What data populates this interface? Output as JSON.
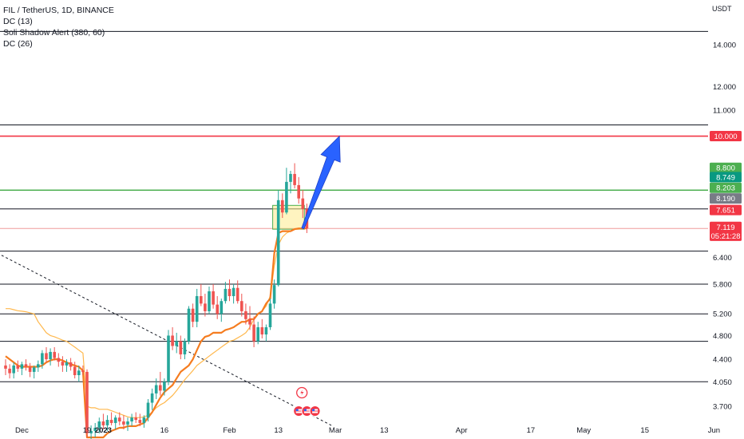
{
  "legend": {
    "symbol": "FIL / TetherUS, 1D, BINANCE",
    "ind1": "DC (13)",
    "ind2": "Soli Shadow Alert (380, 60)",
    "ind3": "DC (26)"
  },
  "currency": "USDT",
  "colors": {
    "up": "#26a69a",
    "down": "#ef5350",
    "dc13": "#f57c1f",
    "dc26": "#ffb84d",
    "red_level": "#f23645",
    "green_level": "#4caf50",
    "arrow": "#2962ff",
    "grid": "#131722"
  },
  "chart_data": {
    "type": "candlestick",
    "y_scale": "log",
    "ylim": [
      3.5,
      16.5
    ],
    "y_ticks": [
      "14.000",
      "12.000",
      "11.000",
      "6.400",
      "5.800",
      "5.200",
      "4.800",
      "4.400",
      "4.050",
      "3.700"
    ],
    "x_ticks": [
      {
        "label": "Dec",
        "index": 4,
        "bold": false
      },
      {
        "label": "19",
        "index": 20,
        "bold": false
      },
      {
        "label": "2023",
        "index": 24,
        "bold": true
      },
      {
        "label": "16",
        "index": 39,
        "bold": false
      },
      {
        "label": "Feb",
        "index": 55,
        "bold": false
      },
      {
        "label": "13",
        "index": 67,
        "bold": false
      },
      {
        "label": "Mar",
        "index": 81,
        "bold": false
      },
      {
        "label": "13",
        "index": 93,
        "bold": false
      },
      {
        "label": "Apr",
        "index": 112,
        "bold": false
      },
      {
        "label": "17",
        "index": 129,
        "bold": false
      },
      {
        "label": "May",
        "index": 142,
        "bold": false
      },
      {
        "label": "15",
        "index": 157,
        "bold": false
      },
      {
        "label": "Jun",
        "index": 174,
        "bold": false
      }
    ],
    "candles": [
      [
        4.3,
        4.4,
        4.15,
        4.25
      ],
      [
        4.25,
        4.32,
        4.1,
        4.18
      ],
      [
        4.18,
        4.35,
        4.1,
        4.3
      ],
      [
        4.3,
        4.38,
        4.2,
        4.25
      ],
      [
        4.25,
        4.36,
        4.15,
        4.32
      ],
      [
        4.32,
        4.4,
        4.22,
        4.28
      ],
      [
        4.28,
        4.34,
        4.12,
        4.2
      ],
      [
        4.2,
        4.3,
        4.1,
        4.27
      ],
      [
        4.27,
        4.38,
        4.2,
        4.32
      ],
      [
        4.32,
        4.55,
        4.25,
        4.5
      ],
      [
        4.5,
        4.6,
        4.35,
        4.4
      ],
      [
        4.4,
        4.58,
        4.3,
        4.52
      ],
      [
        4.52,
        4.6,
        4.38,
        4.42
      ],
      [
        4.42,
        4.5,
        4.28,
        4.36
      ],
      [
        4.36,
        4.45,
        4.2,
        4.3
      ],
      [
        4.3,
        4.4,
        4.2,
        4.35
      ],
      [
        4.35,
        4.42,
        4.22,
        4.28
      ],
      [
        4.28,
        4.36,
        4.1,
        4.15
      ],
      [
        4.15,
        4.3,
        4.05,
        4.22
      ],
      [
        4.22,
        4.3,
        4.15,
        4.2
      ],
      [
        4.2,
        4.24,
        3.3,
        3.35
      ],
      [
        3.35,
        3.45,
        3.25,
        3.38
      ],
      [
        3.38,
        3.48,
        3.3,
        3.42
      ],
      [
        3.42,
        3.55,
        3.35,
        3.5
      ],
      [
        3.5,
        3.6,
        3.4,
        3.45
      ],
      [
        3.45,
        3.58,
        3.38,
        3.52
      ],
      [
        3.52,
        3.62,
        3.45,
        3.48
      ],
      [
        3.48,
        3.58,
        3.4,
        3.55
      ],
      [
        3.55,
        3.62,
        3.45,
        3.5
      ],
      [
        3.5,
        3.58,
        3.4,
        3.46
      ],
      [
        3.46,
        3.55,
        3.38,
        3.5
      ],
      [
        3.5,
        3.6,
        3.44,
        3.55
      ],
      [
        3.55,
        3.62,
        3.48,
        3.52
      ],
      [
        3.52,
        3.6,
        3.44,
        3.48
      ],
      [
        3.48,
        3.58,
        3.42,
        3.55
      ],
      [
        3.55,
        3.8,
        3.5,
        3.75
      ],
      [
        3.75,
        3.95,
        3.65,
        3.88
      ],
      [
        3.88,
        4.1,
        3.8,
        4.0
      ],
      [
        4.0,
        4.2,
        3.85,
        3.92
      ],
      [
        3.92,
        4.1,
        3.85,
        4.05
      ],
      [
        4.05,
        4.9,
        4.0,
        4.8
      ],
      [
        4.8,
        4.95,
        4.55,
        4.62
      ],
      [
        4.62,
        4.85,
        4.5,
        4.7
      ],
      [
        4.7,
        4.8,
        4.4,
        4.48
      ],
      [
        4.48,
        4.75,
        4.4,
        4.7
      ],
      [
        4.7,
        5.35,
        4.65,
        5.3
      ],
      [
        5.3,
        5.4,
        4.95,
        5.05
      ],
      [
        5.05,
        5.7,
        4.95,
        5.55
      ],
      [
        5.55,
        5.8,
        5.35,
        5.4
      ],
      [
        5.4,
        5.6,
        5.15,
        5.25
      ],
      [
        5.25,
        5.75,
        5.2,
        5.65
      ],
      [
        5.65,
        5.8,
        5.3,
        5.38
      ],
      [
        5.38,
        5.55,
        5.1,
        5.2
      ],
      [
        5.2,
        5.5,
        5.05,
        5.45
      ],
      [
        5.45,
        5.85,
        5.4,
        5.7
      ],
      [
        5.7,
        5.9,
        5.45,
        5.55
      ],
      [
        5.55,
        5.8,
        5.4,
        5.72
      ],
      [
        5.72,
        5.88,
        5.4,
        5.45
      ],
      [
        5.45,
        5.6,
        5.15,
        5.25
      ],
      [
        5.25,
        5.4,
        5.0,
        5.1
      ],
      [
        5.1,
        5.35,
        4.9,
        5.0
      ],
      [
        5.0,
        5.15,
        4.6,
        4.7
      ],
      [
        4.7,
        5.05,
        4.65,
        4.95
      ],
      [
        4.95,
        5.1,
        4.75,
        4.82
      ],
      [
        4.82,
        5.0,
        4.7,
        4.95
      ],
      [
        4.95,
        5.5,
        4.9,
        5.4
      ],
      [
        5.4,
        5.9,
        5.3,
        5.78
      ],
      [
        5.78,
        8.2,
        5.75,
        7.9
      ],
      [
        7.9,
        8.1,
        7.4,
        7.55
      ],
      [
        7.55,
        8.9,
        7.5,
        8.45
      ],
      [
        8.45,
        8.8,
        8.1,
        8.7
      ],
      [
        8.7,
        9.05,
        8.25,
        8.35
      ],
      [
        8.35,
        8.6,
        7.8,
        7.95
      ],
      [
        7.95,
        8.2,
        7.4,
        7.65
      ],
      [
        7.65,
        7.8,
        7.0,
        7.12
      ]
    ],
    "dc13": [
      4.45,
      4.4,
      4.35,
      4.3,
      4.28,
      4.28,
      4.28,
      4.28,
      4.28,
      4.3,
      4.35,
      4.38,
      4.4,
      4.4,
      4.38,
      4.35,
      4.32,
      4.3,
      4.28,
      4.22,
      3.3,
      3.3,
      3.3,
      3.3,
      3.3,
      3.35,
      3.38,
      3.4,
      3.42,
      3.42,
      3.44,
      3.44,
      3.44,
      3.46,
      3.48,
      3.55,
      3.62,
      3.72,
      3.82,
      3.9,
      3.95,
      4.0,
      4.1,
      4.2,
      4.25,
      4.3,
      4.4,
      4.55,
      4.7,
      4.78,
      4.8,
      4.85,
      4.85,
      4.85,
      4.9,
      4.92,
      4.95,
      5.0,
      5.05,
      5.05,
      5.1,
      5.1,
      5.2,
      5.25,
      5.4,
      5.5,
      6.5,
      7.0,
      7.05,
      7.05,
      7.05,
      7.1,
      7.12,
      7.12,
      7.12
    ],
    "dc26": [
      5.3,
      5.3,
      5.28,
      5.26,
      5.25,
      5.24,
      5.22,
      5.2,
      5.05,
      4.95,
      4.85,
      4.8,
      4.78,
      4.75,
      4.72,
      4.7,
      4.65,
      4.6,
      4.55,
      4.5,
      3.7,
      3.68,
      3.68,
      3.66,
      3.66,
      3.66,
      3.64,
      3.62,
      3.6,
      3.58,
      3.56,
      3.55,
      3.55,
      3.55,
      3.56,
      3.58,
      3.62,
      3.68,
      3.72,
      3.75,
      3.8,
      3.85,
      3.92,
      4.0,
      4.08,
      4.15,
      4.22,
      4.3,
      4.35,
      4.4,
      4.45,
      4.5,
      4.55,
      4.6,
      4.65,
      4.7,
      4.72,
      4.76,
      4.8,
      4.85,
      4.95,
      5.1,
      5.2,
      5.25,
      5.35,
      5.55,
      6.2,
      6.7,
      6.9,
      7.0,
      7.05,
      7.1,
      7.1,
      7.12,
      7.12
    ],
    "horizontal_levels": [
      {
        "price": 14.7,
        "color": "#131722"
      },
      {
        "price": 10.42,
        "color": "#131722"
      },
      {
        "price": 10.0,
        "color": "#f23645"
      },
      {
        "price": 8.203,
        "color": "#4caf50"
      },
      {
        "price": 8.19,
        "color": "#4caf50"
      },
      {
        "price": 7.651,
        "color": "#131722"
      },
      {
        "price": 7.119,
        "color": "#ef9a9a"
      },
      {
        "price": 6.55,
        "color": "#131722"
      },
      {
        "price": 5.8,
        "color": "#131722"
      },
      {
        "price": 5.2,
        "color": "#131722"
      },
      {
        "price": 4.7,
        "color": "#131722"
      },
      {
        "price": 4.05,
        "color": "#131722"
      }
    ],
    "price_tags": [
      {
        "text": "10.000",
        "price": 10.0,
        "color": "#f23645"
      },
      {
        "text": "8.800",
        "price": 8.9,
        "color": "#4caf50"
      },
      {
        "text": "8.749",
        "price": 8.6,
        "color": "#089981"
      },
      {
        "text": "8.203",
        "price": 8.27,
        "color": "#4caf50"
      },
      {
        "text": "8.190",
        "price": 7.95,
        "color": "#787b86"
      },
      {
        "text": "7.651",
        "price": 7.62,
        "color": "#f23645"
      },
      {
        "text": "7.119",
        "price": 7.16,
        "color": "#f23645"
      },
      {
        "text": "05:21:28",
        "price": 6.93,
        "color": "#f23645"
      }
    ],
    "trendline": {
      "from": [
        -1,
        6.45
      ],
      "to": [
        80,
        3.45
      ]
    },
    "zone": {
      "from_index": 66,
      "to_index": 73,
      "low": 7.1,
      "high": 7.75
    },
    "arrow": {
      "from": [
        73,
        7.12
      ],
      "to": [
        82,
        10.0
      ]
    },
    "event_icons": [
      {
        "index": 72,
        "type": "bolt"
      },
      {
        "index": 72,
        "type": "flag"
      },
      {
        "index": 74,
        "type": "flag"
      },
      {
        "index": 76,
        "type": "flag"
      }
    ]
  }
}
